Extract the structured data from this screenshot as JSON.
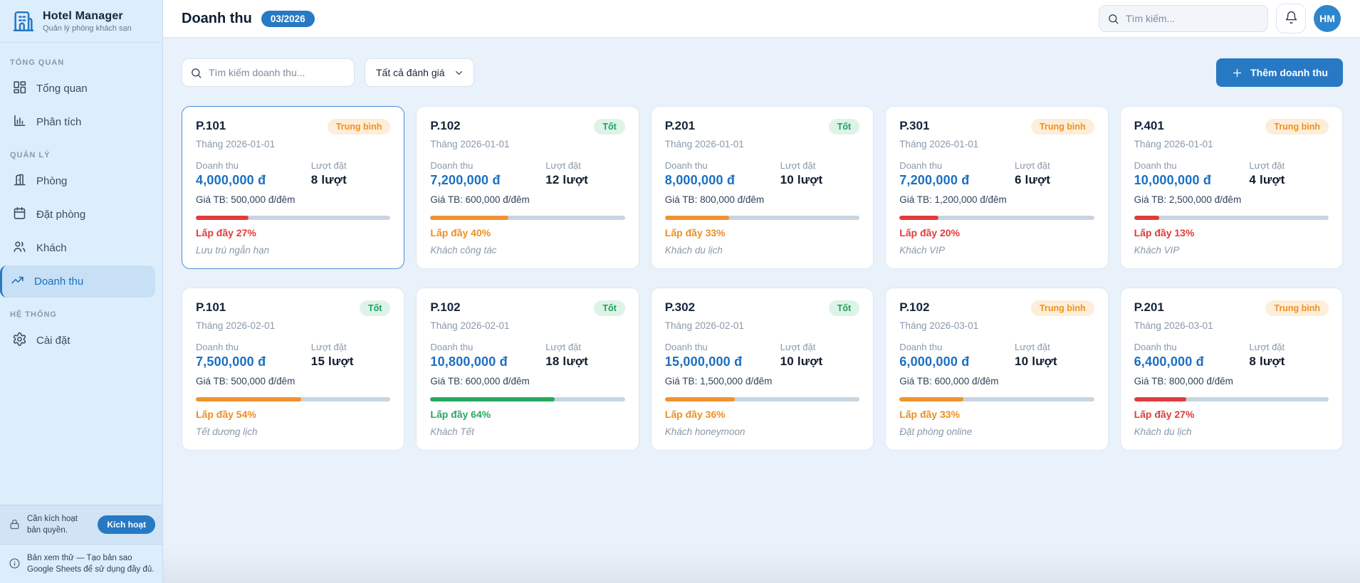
{
  "app": {
    "title": "Hotel Manager",
    "subtitle": "Quản lý phòng khách sạn"
  },
  "sidebar": {
    "sections": [
      {
        "label": "TỔNG QUAN",
        "items": [
          {
            "name": "overview",
            "label": "Tổng quan",
            "icon": "grid-icon",
            "active": false
          },
          {
            "name": "analytics",
            "label": "Phân tích",
            "icon": "chart-icon",
            "active": false
          }
        ]
      },
      {
        "label": "QUẢN LÝ",
        "items": [
          {
            "name": "rooms",
            "label": "Phòng",
            "icon": "door-icon",
            "active": false
          },
          {
            "name": "bookings",
            "label": "Đặt phòng",
            "icon": "calendar-icon",
            "active": false
          },
          {
            "name": "guests",
            "label": "Khách",
            "icon": "users-icon",
            "active": false
          },
          {
            "name": "revenue",
            "label": "Doanh thu",
            "icon": "trend-icon",
            "active": true
          }
        ]
      },
      {
        "label": "HỆ THỐNG",
        "items": [
          {
            "name": "settings",
            "label": "Cài đặt",
            "icon": "gear-icon",
            "active": false
          }
        ]
      }
    ],
    "license_notice": "Cần kích hoạt bản quyền.",
    "activate_button": "Kích hoạt",
    "trial_notice": "Bản xem thử — Tạo bản sao Google Sheets để sử dụng đầy đủ."
  },
  "header": {
    "title": "Doanh thu",
    "period_badge": "03/2026",
    "search_placeholder": "Tìm kiếm...",
    "avatar": "HM"
  },
  "toolbar": {
    "search_placeholder": "Tìm kiếm doanh thu...",
    "filter_value": "Tất cả đánh giá",
    "add_button": "Thêm doanh thu"
  },
  "labels": {
    "revenue": "Doanh thu",
    "bookings": "Lượt đặt"
  },
  "colors": {
    "accent": "#2779c4",
    "revenue_value": "#1b6fc2",
    "good": "#1aa35a",
    "average": "#ee9122",
    "low": "#e23b3b",
    "mid": "#f0932f",
    "high": "#27a862"
  },
  "cards": [
    {
      "room": "P.101",
      "rating": "Trung bình",
      "rating_type": "average",
      "month": "Tháng 2026-01-01",
      "revenue": "4,000,000 đ",
      "bookings": "8 lượt",
      "avg_price": "Giá TB: 500,000 đ/đêm",
      "occupancy_pct": 27,
      "occupancy_label": "Lấp đầy 27%",
      "level": "low",
      "note": "Lưu trú ngắn hạn",
      "highlighted": true
    },
    {
      "room": "P.102",
      "rating": "Tốt",
      "rating_type": "good",
      "month": "Tháng 2026-01-01",
      "revenue": "7,200,000 đ",
      "bookings": "12 lượt",
      "avg_price": "Giá TB: 600,000 đ/đêm",
      "occupancy_pct": 40,
      "occupancy_label": "Lấp đầy 40%",
      "level": "mid",
      "note": "Khách công tác",
      "highlighted": false
    },
    {
      "room": "P.201",
      "rating": "Tốt",
      "rating_type": "good",
      "month": "Tháng 2026-01-01",
      "revenue": "8,000,000 đ",
      "bookings": "10 lượt",
      "avg_price": "Giá TB: 800,000 đ/đêm",
      "occupancy_pct": 33,
      "occupancy_label": "Lấp đầy 33%",
      "level": "mid",
      "note": "Khách du lịch",
      "highlighted": false
    },
    {
      "room": "P.301",
      "rating": "Trung bình",
      "rating_type": "average",
      "month": "Tháng 2026-01-01",
      "revenue": "7,200,000 đ",
      "bookings": "6 lượt",
      "avg_price": "Giá TB: 1,200,000 đ/đêm",
      "occupancy_pct": 20,
      "occupancy_label": "Lấp đầy 20%",
      "level": "low",
      "note": "Khách VIP",
      "highlighted": false
    },
    {
      "room": "P.401",
      "rating": "Trung bình",
      "rating_type": "average",
      "month": "Tháng 2026-01-01",
      "revenue": "10,000,000 đ",
      "bookings": "4 lượt",
      "avg_price": "Giá TB: 2,500,000 đ/đêm",
      "occupancy_pct": 13,
      "occupancy_label": "Lấp đầy 13%",
      "level": "low",
      "note": "Khách VIP",
      "highlighted": false
    },
    {
      "room": "P.101",
      "rating": "Tốt",
      "rating_type": "good",
      "month": "Tháng 2026-02-01",
      "revenue": "7,500,000 đ",
      "bookings": "15 lượt",
      "avg_price": "Giá TB: 500,000 đ/đêm",
      "occupancy_pct": 54,
      "occupancy_label": "Lấp đầy 54%",
      "level": "mid",
      "note": "Tết dương lịch",
      "highlighted": false
    },
    {
      "room": "P.102",
      "rating": "Tốt",
      "rating_type": "good",
      "month": "Tháng 2026-02-01",
      "revenue": "10,800,000 đ",
      "bookings": "18 lượt",
      "avg_price": "Giá TB: 600,000 đ/đêm",
      "occupancy_pct": 64,
      "occupancy_label": "Lấp đầy 64%",
      "level": "high",
      "note": "Khách Tết",
      "highlighted": false
    },
    {
      "room": "P.302",
      "rating": "Tốt",
      "rating_type": "good",
      "month": "Tháng 2026-02-01",
      "revenue": "15,000,000 đ",
      "bookings": "10 lượt",
      "avg_price": "Giá TB: 1,500,000 đ/đêm",
      "occupancy_pct": 36,
      "occupancy_label": "Lấp đầy 36%",
      "level": "mid",
      "note": "Khách honeymoon",
      "highlighted": false
    },
    {
      "room": "P.102",
      "rating": "Trung bình",
      "rating_type": "average",
      "month": "Tháng 2026-03-01",
      "revenue": "6,000,000 đ",
      "bookings": "10 lượt",
      "avg_price": "Giá TB: 600,000 đ/đêm",
      "occupancy_pct": 33,
      "occupancy_label": "Lấp đầy 33%",
      "level": "mid",
      "note": "Đặt phòng online",
      "highlighted": false
    },
    {
      "room": "P.201",
      "rating": "Trung bình",
      "rating_type": "average",
      "month": "Tháng 2026-03-01",
      "revenue": "6,400,000 đ",
      "bookings": "8 lượt",
      "avg_price": "Giá TB: 800,000 đ/đêm",
      "occupancy_pct": 27,
      "occupancy_label": "Lấp đầy 27%",
      "level": "low",
      "note": "Khách du lịch",
      "highlighted": false
    }
  ]
}
